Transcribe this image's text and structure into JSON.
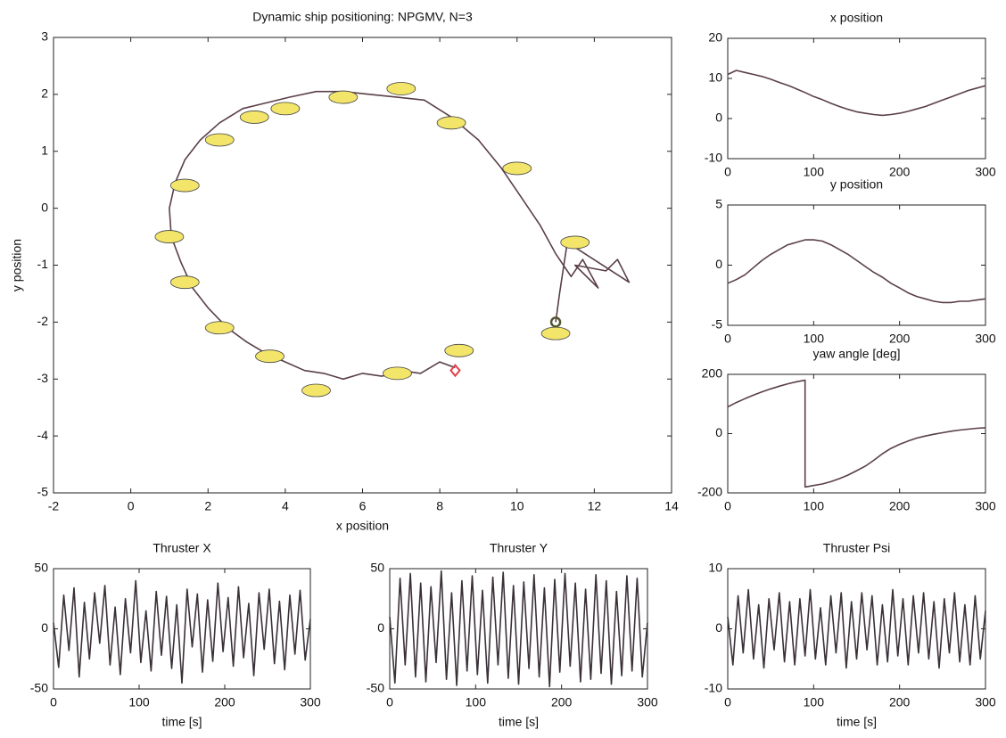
{
  "chart_data": [
    {
      "type": "line",
      "title": "Dynamic ship positioning: NPGMV, N=3",
      "xlabel": "x position",
      "ylabel": "y position",
      "xlim": [
        -2,
        14
      ],
      "ylim": [
        -5,
        3
      ],
      "xticks": [
        -2,
        0,
        2,
        4,
        6,
        8,
        10,
        12,
        14
      ],
      "yticks": [
        -5,
        -4,
        -3,
        -2,
        -1,
        0,
        1,
        2,
        3
      ],
      "series": [
        {
          "style": "line",
          "color": "#5a3f4a",
          "x": [
            8.4,
            8,
            7.5,
            7,
            6.5,
            6,
            5.5,
            5,
            4.5,
            4,
            3.5,
            3,
            2.5,
            2,
            1.6,
            1.3,
            1.05,
            1,
            1.15,
            1.4,
            1.8,
            2.3,
            2.9,
            3.5,
            4.1,
            4.8,
            5.5,
            6.2,
            6.9,
            7.6,
            8.3,
            9,
            9.6,
            10.1,
            10.6,
            11,
            11.4,
            11.7,
            12.1,
            11.5,
            12.3,
            12.6,
            12.9,
            11.3,
            11.1,
            11
          ],
          "values": [
            -2.8,
            -2.7,
            -2.9,
            -2.85,
            -2.95,
            -2.9,
            -3,
            -2.9,
            -2.85,
            -2.7,
            -2.55,
            -2.35,
            -2.1,
            -1.75,
            -1.4,
            -0.95,
            -0.5,
            0,
            0.45,
            0.85,
            1.2,
            1.5,
            1.75,
            1.85,
            1.95,
            2.05,
            2.05,
            2,
            1.95,
            1.9,
            1.6,
            1.2,
            0.7,
            0.2,
            -0.3,
            -0.8,
            -1.2,
            -0.9,
            -1.4,
            -1,
            -1.1,
            -0.9,
            -1.3,
            -0.6,
            -1.5,
            -2
          ]
        },
        {
          "style": "ship",
          "color": "#f3e56a",
          "x": [
            7,
            5.5,
            4,
            3.2,
            2.3,
            1.4,
            1,
            1.4,
            2.3,
            3.6,
            4.8,
            6.9,
            8.5,
            8.3,
            10,
            11.5,
            11
          ],
          "values": [
            2.1,
            1.95,
            1.75,
            1.6,
            1.2,
            0.4,
            -0.5,
            -1.3,
            -2.1,
            -2.6,
            -3.2,
            -2.9,
            -2.5,
            1.5,
            0.7,
            -0.6,
            -2.2
          ]
        },
        {
          "style": "diamond",
          "color": "#e0404a",
          "x": [
            8.4
          ],
          "values": [
            -2.85
          ]
        },
        {
          "style": "circle",
          "color": "#555533",
          "x": [
            11
          ],
          "values": [
            -2
          ]
        }
      ]
    },
    {
      "type": "line",
      "title": "x position",
      "xlim": [
        0,
        300
      ],
      "ylim": [
        -10,
        20
      ],
      "xticks": [
        0,
        100,
        200,
        300
      ],
      "yticks": [
        -10,
        0,
        10,
        20
      ],
      "series": [
        {
          "style": "line",
          "color": "#5a3f4a",
          "x": [
            0,
            10,
            20,
            30,
            40,
            50,
            60,
            70,
            80,
            90,
            100,
            110,
            120,
            130,
            140,
            150,
            160,
            170,
            180,
            190,
            200,
            210,
            220,
            230,
            240,
            250,
            260,
            270,
            280,
            290,
            300
          ],
          "values": [
            11,
            12,
            11.5,
            11,
            10.5,
            9.8,
            9,
            8.3,
            7.4,
            6.5,
            5.5,
            4.7,
            3.8,
            3,
            2.3,
            1.7,
            1.3,
            1,
            0.8,
            1,
            1.3,
            1.8,
            2.4,
            3,
            3.8,
            4.6,
            5.4,
            6.2,
            7,
            7.6,
            8.2
          ]
        }
      ]
    },
    {
      "type": "line",
      "title": "y position",
      "xlim": [
        0,
        300
      ],
      "ylim": [
        -5,
        5
      ],
      "xticks": [
        0,
        100,
        200,
        300
      ],
      "yticks": [
        -5,
        0,
        5
      ],
      "series": [
        {
          "style": "line",
          "color": "#5a3f4a",
          "x": [
            0,
            10,
            20,
            30,
            40,
            50,
            60,
            70,
            80,
            90,
            100,
            110,
            120,
            130,
            140,
            150,
            160,
            170,
            180,
            190,
            200,
            210,
            220,
            230,
            240,
            250,
            260,
            270,
            280,
            290,
            300
          ],
          "values": [
            -1.5,
            -1.2,
            -0.8,
            -0.2,
            0.4,
            0.9,
            1.3,
            1.7,
            1.9,
            2.1,
            2.1,
            2,
            1.7,
            1.3,
            0.9,
            0.4,
            -0.1,
            -0.6,
            -1,
            -1.5,
            -1.9,
            -2.3,
            -2.6,
            -2.8,
            -3,
            -3.1,
            -3.1,
            -3,
            -3,
            -2.9,
            -2.8
          ]
        }
      ]
    },
    {
      "type": "line",
      "title": "yaw angle [deg]",
      "xlim": [
        0,
        300
      ],
      "ylim": [
        -200,
        200
      ],
      "xticks": [
        0,
        100,
        200,
        300
      ],
      "yticks": [
        -200,
        0,
        200
      ],
      "series": [
        {
          "style": "line",
          "color": "#5a3f4a",
          "x": [
            0,
            10,
            20,
            30,
            40,
            50,
            60,
            70,
            80,
            90,
            90,
            100,
            110,
            120,
            130,
            140,
            150,
            160,
            170,
            180,
            190,
            200,
            210,
            220,
            230,
            240,
            250,
            260,
            270,
            280,
            290,
            300
          ],
          "values": [
            90,
            105,
            118,
            130,
            141,
            151,
            160,
            168,
            175,
            180,
            -180,
            -175,
            -170,
            -162,
            -152,
            -140,
            -125,
            -110,
            -90,
            -68,
            -50,
            -36,
            -25,
            -15,
            -8,
            -2,
            3,
            8,
            12,
            15,
            18,
            20
          ]
        }
      ]
    },
    {
      "type": "line",
      "title": "Thruster X",
      "xlabel": "time [s]",
      "xlim": [
        0,
        300
      ],
      "ylim": [
        -50,
        50
      ],
      "xticks": [
        0,
        100,
        200,
        300
      ],
      "yticks": [
        -50,
        0,
        50
      ],
      "series": [
        {
          "style": "line",
          "color": "#3a3038",
          "x": [
            0,
            6,
            12,
            18,
            24,
            30,
            36,
            42,
            48,
            54,
            60,
            66,
            72,
            78,
            84,
            90,
            96,
            102,
            108,
            114,
            120,
            126,
            132,
            138,
            144,
            150,
            156,
            162,
            168,
            174,
            180,
            186,
            192,
            198,
            204,
            210,
            216,
            222,
            228,
            234,
            240,
            246,
            252,
            258,
            264,
            270,
            276,
            282,
            288,
            294,
            300
          ],
          "values": [
            5,
            -32,
            28,
            -18,
            34,
            -40,
            22,
            -25,
            30,
            -12,
            36,
            -30,
            18,
            -38,
            25,
            -20,
            40,
            -28,
            15,
            -35,
            31,
            -22,
            27,
            -33,
            20,
            -45,
            33,
            -15,
            29,
            -36,
            24,
            -27,
            38,
            -19,
            26,
            -31,
            35,
            -24,
            21,
            -39,
            30,
            -17,
            33,
            -29,
            23,
            -34,
            28,
            -21,
            32,
            -26,
            8
          ]
        }
      ]
    },
    {
      "type": "line",
      "title": "Thruster Y",
      "xlabel": "time [s]",
      "xlim": [
        0,
        300
      ],
      "ylim": [
        -50,
        50
      ],
      "xticks": [
        0,
        100,
        200,
        300
      ],
      "yticks": [
        -50,
        0,
        50
      ],
      "series": [
        {
          "style": "line",
          "color": "#3a3038",
          "x": [
            0,
            6,
            12,
            18,
            24,
            30,
            36,
            42,
            48,
            54,
            60,
            66,
            72,
            78,
            84,
            90,
            96,
            102,
            108,
            114,
            120,
            126,
            132,
            138,
            144,
            150,
            156,
            162,
            168,
            174,
            180,
            186,
            192,
            198,
            204,
            210,
            216,
            222,
            228,
            234,
            240,
            246,
            252,
            258,
            264,
            270,
            276,
            282,
            288,
            294,
            300
          ],
          "values": [
            10,
            -45,
            42,
            -30,
            46,
            -40,
            38,
            -44,
            35,
            -28,
            48,
            -42,
            30,
            -47,
            40,
            -35,
            44,
            -38,
            32,
            -45,
            43,
            -30,
            47,
            -41,
            36,
            -46,
            39,
            -33,
            45,
            -40,
            34,
            -48,
            41,
            -36,
            46,
            -31,
            38,
            -44,
            33,
            -42,
            45,
            -37,
            40,
            -46,
            31,
            -39,
            44,
            -35,
            42,
            -40,
            5
          ]
        }
      ]
    },
    {
      "type": "line",
      "title": "Thruster Psi",
      "xlabel": "time [s]",
      "xlim": [
        0,
        300
      ],
      "ylim": [
        -10,
        10
      ],
      "xticks": [
        0,
        100,
        200,
        300
      ],
      "yticks": [
        -10,
        0,
        10
      ],
      "series": [
        {
          "style": "line",
          "color": "#3a3038",
          "x": [
            0,
            6,
            12,
            18,
            24,
            30,
            36,
            42,
            48,
            54,
            60,
            66,
            72,
            78,
            84,
            90,
            96,
            102,
            108,
            114,
            120,
            126,
            132,
            138,
            144,
            150,
            156,
            162,
            168,
            174,
            180,
            186,
            192,
            198,
            204,
            210,
            216,
            222,
            228,
            234,
            240,
            246,
            252,
            258,
            264,
            270,
            276,
            282,
            288,
            294,
            300
          ],
          "values": [
            2,
            -6,
            5.5,
            -4,
            6.5,
            -5,
            4,
            -6.5,
            5,
            -3.5,
            6,
            -5.5,
            4.5,
            -6,
            5,
            -4.5,
            6.5,
            -5,
            3.5,
            -6,
            5.5,
            -4,
            6,
            -6.5,
            4.5,
            -5,
            6,
            -3.5,
            5.5,
            -6,
            4,
            -5.5,
            6.5,
            -4.5,
            5,
            -6,
            5.5,
            -4,
            6,
            -5,
            4.5,
            -6.5,
            5,
            -4,
            6,
            -5.5,
            4,
            -6,
            5.5,
            -5,
            3
          ]
        }
      ]
    }
  ]
}
